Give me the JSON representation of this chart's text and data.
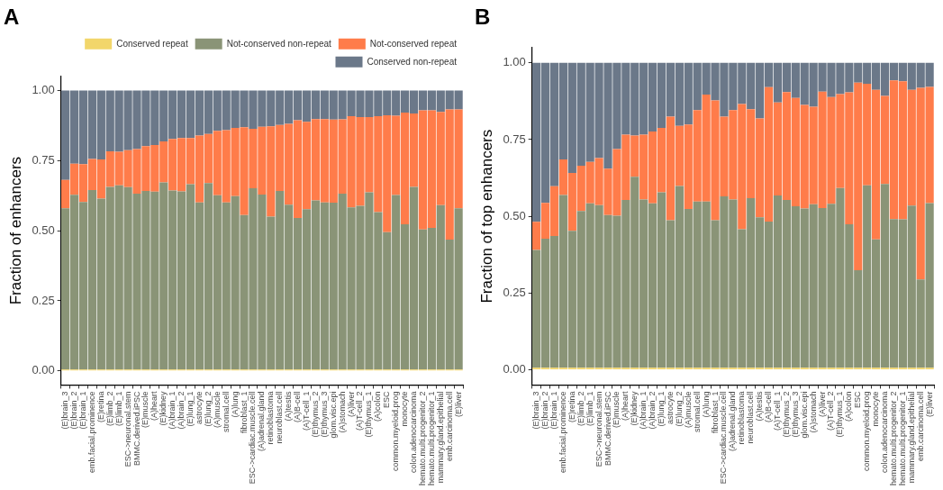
{
  "chart_data": [
    {
      "type": "bar",
      "title": "A",
      "ylabel": "Fraction of enhancers",
      "stacked": true,
      "legend": "top",
      "ylim": [
        -0.05,
        1.05
      ],
      "yticks": [
        {
          "value": 0,
          "label": "0.00"
        },
        {
          "value": 0.25,
          "label": "0.25"
        },
        {
          "value": 0.5,
          "label": "0.50"
        },
        {
          "value": 0.75,
          "label": "0.75"
        },
        {
          "value": 1,
          "label": "1.00"
        }
      ],
      "categories": [
        "(E)brain_3",
        "(E)brain_2",
        "(E)brain_1",
        "emb.facial.prominence",
        "(E)retina",
        "(E)limb_2",
        "(E)limb_1",
        "ESC->neuronal.stem",
        "BMMC.derived.iPSC",
        "(E)muscle",
        "(A)heart",
        "(E)kidney",
        "(A)brain_1",
        "(A)brain_2",
        "(E)lung_1",
        "astrocyte",
        "(E)lung_2",
        "(A)muscle",
        "stromal.cell",
        "(A)lung",
        "fibroblast_1",
        "ESC->cardiac.muscle.cell",
        "(A)adrenal.gland",
        "retinoblastoma",
        "neuroblast.cell",
        "(A)testis",
        "(A)B-cell",
        "(A)T-cell_1",
        "(E)thymus_2",
        "(E)thymus_3",
        "glom.visc.epi",
        "(A)stomach",
        "(A)liver",
        "(A)T-cell_2",
        "(E)thymus_1",
        "(A)colon",
        "ESC",
        "common.myeloid.prog",
        "monocyte",
        "colon.adenocarcinoma",
        "hemato.multi.progenitor_2",
        "hemato.multi.progenitor_1",
        "mammary.gland.epithelial",
        "emb.carcinoma.cell",
        "(E)liver"
      ],
      "series": [
        {
          "name": "Conserved repeat",
          "color": "#f2d66b",
          "values": [
            0.005,
            0.005,
            0.005,
            0.005,
            0.005,
            0.005,
            0.005,
            0.005,
            0.005,
            0.005,
            0.005,
            0.005,
            0.005,
            0.005,
            0.005,
            0.005,
            0.005,
            0.005,
            0.005,
            0.005,
            0.005,
            0.005,
            0.005,
            0.005,
            0.005,
            0.005,
            0.005,
            0.005,
            0.005,
            0.005,
            0.005,
            0.005,
            0.005,
            0.005,
            0.005,
            0.005,
            0.005,
            0.005,
            0.005,
            0.005,
            0.005,
            0.005,
            0.005,
            0.005,
            0.005
          ]
        },
        {
          "name": "Not-conserved non-repeat",
          "color": "#8a9477",
          "values": [
            0.575,
            0.623,
            0.597,
            0.64,
            0.609,
            0.651,
            0.657,
            0.65,
            0.627,
            0.637,
            0.634,
            0.667,
            0.638,
            0.635,
            0.661,
            0.596,
            0.665,
            0.621,
            0.596,
            0.618,
            0.551,
            0.646,
            0.624,
            0.545,
            0.637,
            0.588,
            0.54,
            0.572,
            0.603,
            0.596,
            0.595,
            0.627,
            0.578,
            0.584,
            0.632,
            0.561,
            0.49,
            0.622,
            0.518,
            0.651,
            0.499,
            0.505,
            0.586,
            0.463,
            0.575
          ]
        },
        {
          "name": "Not-conserved repeat",
          "color": "#ff7c4a",
          "values": [
            0.101,
            0.111,
            0.135,
            0.111,
            0.14,
            0.127,
            0.119,
            0.132,
            0.159,
            0.159,
            0.166,
            0.146,
            0.184,
            0.19,
            0.164,
            0.238,
            0.175,
            0.23,
            0.257,
            0.243,
            0.313,
            0.212,
            0.241,
            0.322,
            0.235,
            0.288,
            0.349,
            0.311,
            0.29,
            0.297,
            0.296,
            0.265,
            0.325,
            0.316,
            0.268,
            0.342,
            0.416,
            0.283,
            0.398,
            0.262,
            0.425,
            0.419,
            0.332,
            0.464,
            0.352
          ]
        },
        {
          "name": "Conserved non-repeat",
          "color": "#6b7889",
          "values": [
            0.319,
            0.261,
            0.263,
            0.244,
            0.246,
            0.217,
            0.219,
            0.213,
            0.209,
            0.199,
            0.195,
            0.182,
            0.173,
            0.17,
            0.17,
            0.161,
            0.155,
            0.144,
            0.142,
            0.134,
            0.131,
            0.137,
            0.13,
            0.128,
            0.123,
            0.119,
            0.106,
            0.112,
            0.102,
            0.102,
            0.104,
            0.103,
            0.092,
            0.095,
            0.095,
            0.092,
            0.089,
            0.09,
            0.079,
            0.082,
            0.071,
            0.071,
            0.077,
            0.068,
            0.068
          ]
        }
      ]
    },
    {
      "type": "bar",
      "title": "B",
      "ylabel": "Fraction of top enhancers",
      "stacked": true,
      "ylim": [
        -0.05,
        1.05
      ],
      "yticks": [
        {
          "value": 0,
          "label": "0.00"
        },
        {
          "value": 0.25,
          "label": "0.25"
        },
        {
          "value": 0.5,
          "label": "0.50"
        },
        {
          "value": 0.75,
          "label": "0.75"
        },
        {
          "value": 1,
          "label": "1.00"
        }
      ],
      "categories": [
        "(E)brain_3",
        "(E)brain_2",
        "(E)brain_1",
        "emb.facial.prominence",
        "(E)retina",
        "(E)limb_2",
        "(E)limb_1",
        "ESC->neuronal.stem",
        "BMMC.derived.iPSC",
        "(E)muscle",
        "(A)heart",
        "(E)kidney",
        "(A)brain_1",
        "(A)brain_2",
        "(E)lung_1",
        "astrocyte",
        "(E)lung_2",
        "(A)muscle",
        "stromal.cell",
        "(A)lung",
        "fibroblast_1",
        "ESC->cardiac.muscle.cell",
        "(A)adrenal.gland",
        "retinoblastoma",
        "neuroblast.cell",
        "(A)testis",
        "(A)B-cell",
        "(A)T-cell_1",
        "(E)thymus_2",
        "(E)thymus_3",
        "glom.visc.epi",
        "(A)stomach",
        "(A)liver",
        "(A)T-cell_2",
        "(E)thymus_1",
        "(A)colon",
        "ESC",
        "common.myeloid.prog",
        "monocyte",
        "colon.adenocarcinoma",
        "hemato.multi.progenitor_2",
        "hemato.multi.progenitor_1",
        "mammary.gland.epithelial",
        "emb.carcinoma.cell",
        "(E)liver"
      ],
      "series": [
        {
          "color": "#f2d66b",
          "values": [
            0.006,
            0.006,
            0.006,
            0.006,
            0.006,
            0.006,
            0.006,
            0.006,
            0.006,
            0.006,
            0.006,
            0.006,
            0.006,
            0.006,
            0.006,
            0.006,
            0.006,
            0.006,
            0.006,
            0.006,
            0.006,
            0.006,
            0.006,
            0.006,
            0.006,
            0.006,
            0.006,
            0.006,
            0.006,
            0.006,
            0.006,
            0.006,
            0.006,
            0.006,
            0.006,
            0.006,
            0.006,
            0.006,
            0.006,
            0.006,
            0.006,
            0.006,
            0.006,
            0.006,
            0.006
          ]
        },
        {
          "color": "#8a9477",
          "values": [
            0.384,
            0.421,
            0.43,
            0.563,
            0.447,
            0.511,
            0.536,
            0.53,
            0.498,
            0.496,
            0.547,
            0.623,
            0.549,
            0.536,
            0.572,
            0.481,
            0.593,
            0.518,
            0.542,
            0.542,
            0.481,
            0.559,
            0.549,
            0.452,
            0.553,
            0.491,
            0.477,
            0.562,
            0.547,
            0.527,
            0.519,
            0.533,
            0.521,
            0.535,
            0.586,
            0.468,
            0.318,
            0.595,
            0.419,
            0.599,
            0.485,
            0.484,
            0.529,
            0.288,
            0.537
          ]
        },
        {
          "color": "#ff7c4a",
          "values": [
            0.092,
            0.117,
            0.162,
            0.116,
            0.188,
            0.148,
            0.135,
            0.154,
            0.151,
            0.217,
            0.213,
            0.134,
            0.211,
            0.234,
            0.21,
            0.338,
            0.196,
            0.275,
            0.298,
            0.349,
            0.391,
            0.26,
            0.291,
            0.408,
            0.29,
            0.322,
            0.438,
            0.303,
            0.352,
            0.353,
            0.338,
            0.318,
            0.379,
            0.348,
            0.306,
            0.43,
            0.612,
            0.331,
            0.487,
            0.287,
            0.452,
            0.45,
            0.377,
            0.625,
            0.379
          ]
        },
        {
          "color": "#6b7889",
          "values": [
            0.518,
            0.456,
            0.402,
            0.315,
            0.359,
            0.335,
            0.323,
            0.31,
            0.345,
            0.281,
            0.234,
            0.237,
            0.234,
            0.224,
            0.212,
            0.175,
            0.205,
            0.201,
            0.154,
            0.103,
            0.122,
            0.175,
            0.154,
            0.134,
            0.151,
            0.181,
            0.079,
            0.129,
            0.095,
            0.114,
            0.137,
            0.143,
            0.094,
            0.111,
            0.102,
            0.096,
            0.064,
            0.068,
            0.088,
            0.108,
            0.057,
            0.06,
            0.088,
            0.081,
            0.078
          ]
        }
      ]
    }
  ]
}
